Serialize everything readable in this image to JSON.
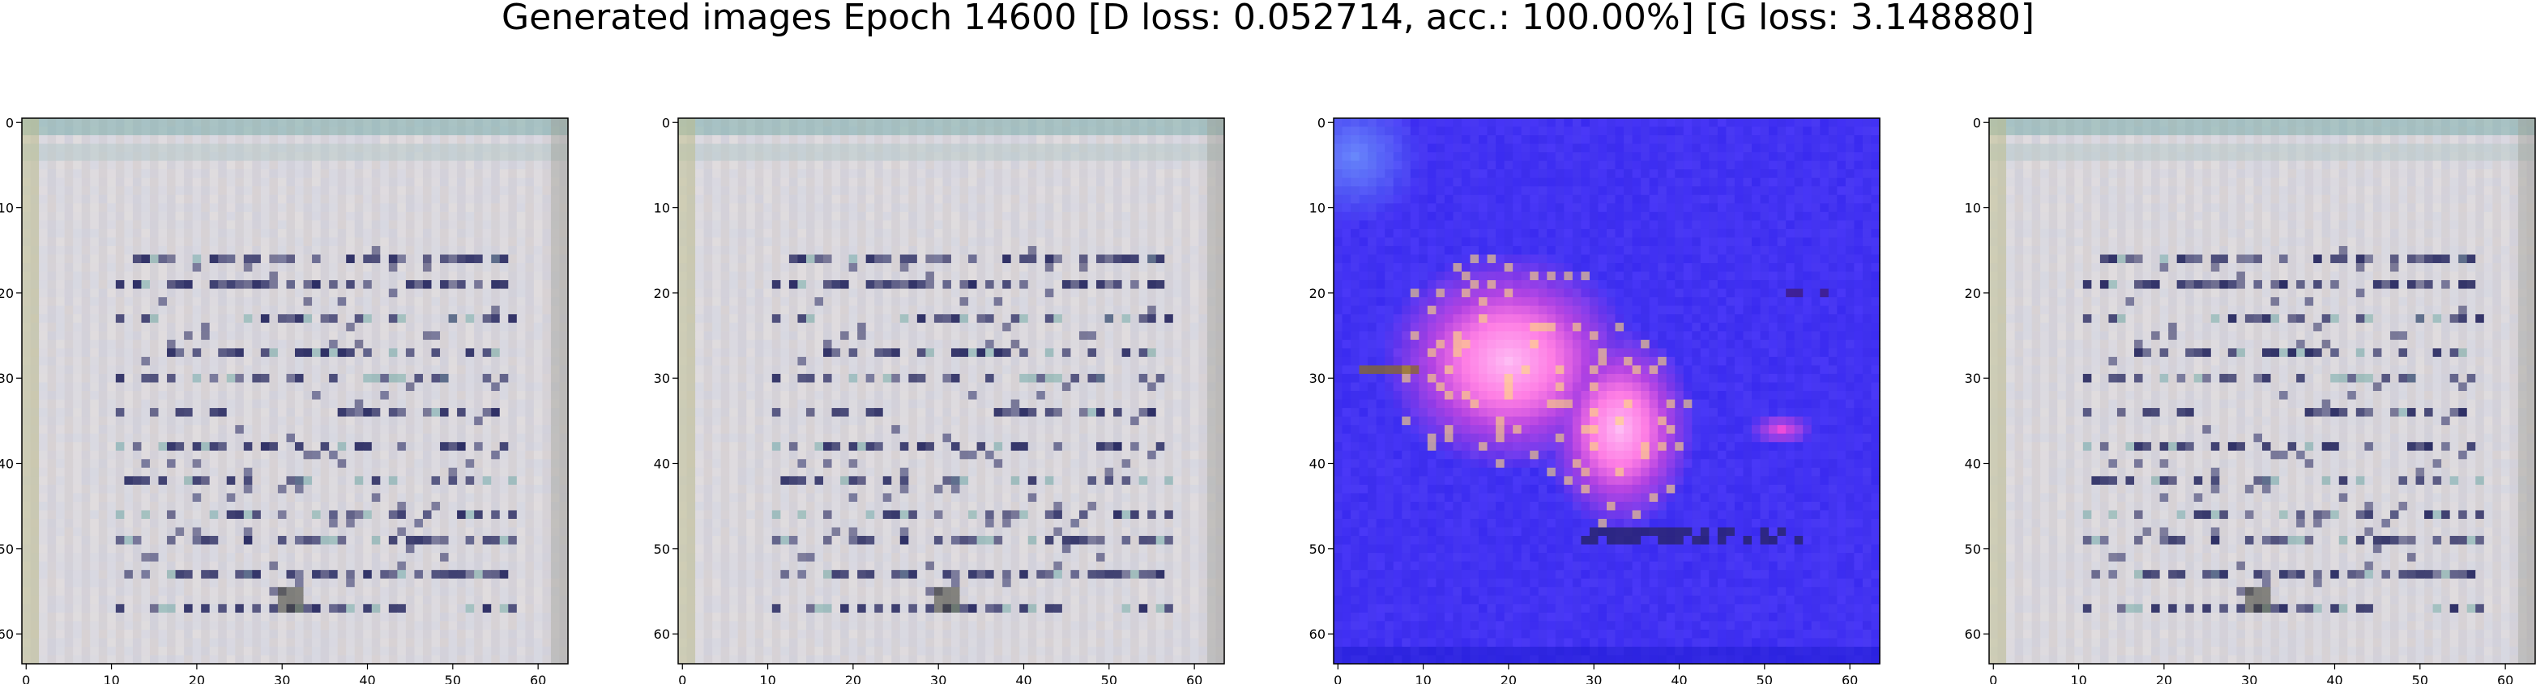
{
  "figure": {
    "title": "Generated images Epoch 14600 [D loss: 0.052714, acc.: 100.00%] [G loss: 3.148880]"
  },
  "panels": [
    {
      "id": "sample-1",
      "kind": "document-like",
      "palette": {
        "background": "#d8d2d4",
        "ink": "#1b1d58",
        "accent": "#6aa6a2",
        "tint": "#c6cfe8"
      },
      "x_ticks": [
        "0",
        "10",
        "20",
        "30",
        "40",
        "50",
        "60"
      ],
      "y_ticks": [
        "0",
        "10",
        "20",
        "30",
        "40",
        "50",
        "60"
      ]
    },
    {
      "id": "sample-2",
      "kind": "document-like",
      "palette": {
        "background": "#d8d2d4",
        "ink": "#1b1d58",
        "accent": "#6aa6a2",
        "tint": "#c6cfe8"
      },
      "x_ticks": [
        "0",
        "10",
        "20",
        "30",
        "40",
        "50",
        "60"
      ],
      "y_ticks": [
        "0",
        "10",
        "20",
        "30",
        "40",
        "50",
        "60"
      ]
    },
    {
      "id": "sample-3",
      "kind": "blue-blob",
      "palette": {
        "background": "#3a2bf0",
        "ink": "#1a1470",
        "accent": "#ff4fd8",
        "tint": "#fde6ff"
      },
      "x_ticks": [
        "0",
        "10",
        "20",
        "30",
        "40",
        "50",
        "60"
      ],
      "y_ticks": [
        "0",
        "10",
        "20",
        "30",
        "40",
        "50",
        "60"
      ]
    },
    {
      "id": "sample-4",
      "kind": "document-like",
      "palette": {
        "background": "#d8d2d4",
        "ink": "#1b1d58",
        "accent": "#6aa6a2",
        "tint": "#c6cfe8"
      },
      "x_ticks": [
        "0",
        "10",
        "20",
        "30",
        "40",
        "50",
        "60"
      ],
      "y_ticks": [
        "0",
        "10",
        "20",
        "30",
        "40",
        "50",
        "60"
      ]
    }
  ]
}
